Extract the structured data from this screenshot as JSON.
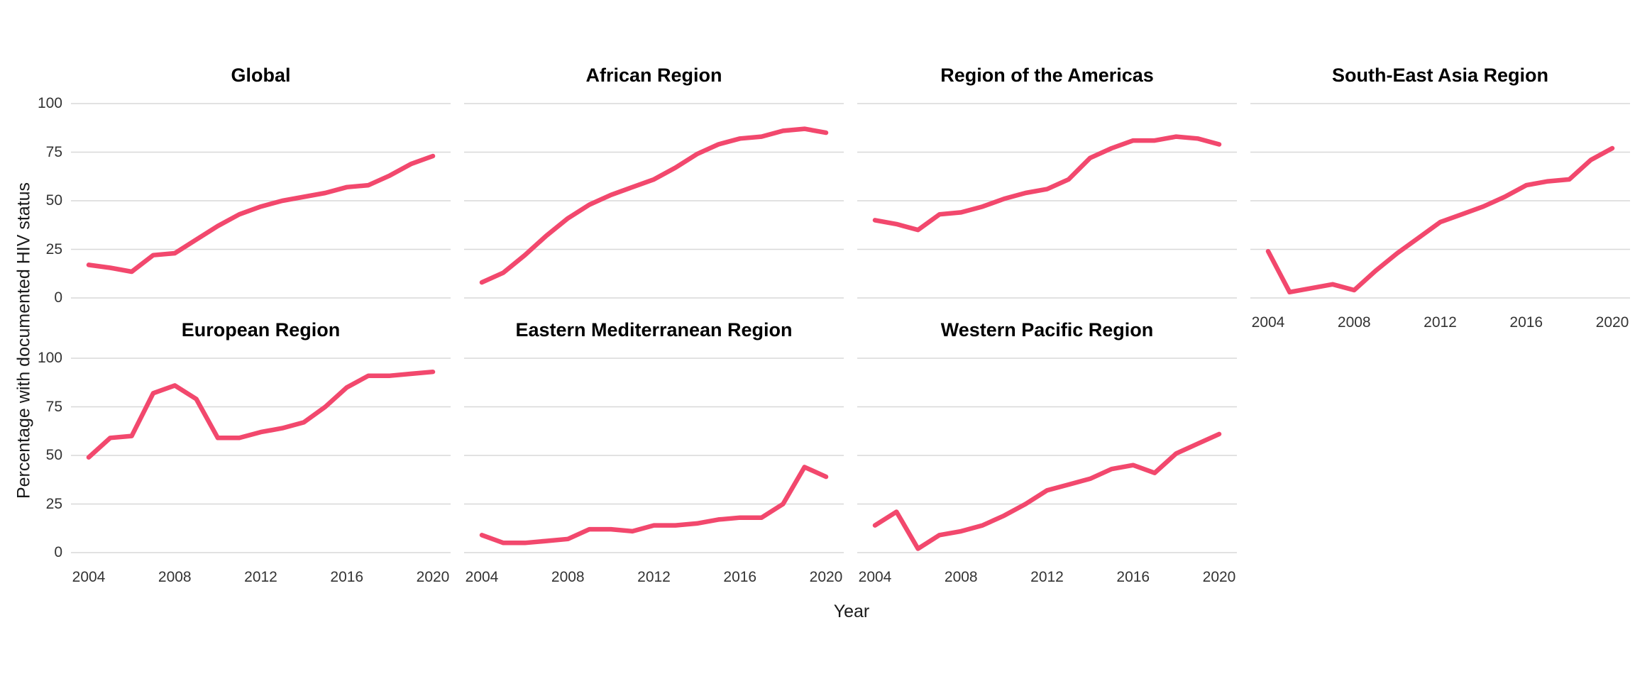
{
  "chart": {
    "style": {
      "line_color": "#F2486D",
      "grid_color": "#D8D8D8",
      "background": "#FFFFFF",
      "tick_label_color": "#333333",
      "title_color": "#000000"
    }
  },
  "chart_data": {
    "type": "line",
    "faceted": true,
    "facet_layout": "2 rows x 4 columns, 7 panels",
    "xlabel": "Year",
    "ylabel": "Percentage with documented HIV status",
    "ylim": [
      0,
      100
    ],
    "y_ticks": [
      0,
      25,
      50,
      75,
      100
    ],
    "x_tick_labels": [
      "2004",
      "2008",
      "2012",
      "2016",
      "2020"
    ],
    "x_tick_values": [
      2004,
      2008,
      2012,
      2016,
      2020
    ],
    "grid": "horizontal-major-only",
    "legend": "none",
    "x": [
      2004,
      2005,
      2006,
      2007,
      2008,
      2009,
      2010,
      2011,
      2012,
      2013,
      2014,
      2015,
      2016,
      2017,
      2018,
      2019,
      2020
    ],
    "facets": [
      {
        "title": "Global",
        "row": 0,
        "col": 0,
        "show_x_axis": false,
        "show_y_axis": true,
        "values": [
          17,
          15.5,
          13.5,
          22,
          23,
          30,
          37,
          43,
          47,
          50,
          52,
          54,
          57,
          58,
          63,
          69,
          73
        ]
      },
      {
        "title": "African Region",
        "row": 0,
        "col": 1,
        "show_x_axis": false,
        "show_y_axis": false,
        "values": [
          8,
          13,
          22,
          32,
          41,
          48,
          53,
          57,
          61,
          67,
          74,
          79,
          82,
          83,
          86,
          87,
          85
        ]
      },
      {
        "title": "Region of the Americas",
        "row": 0,
        "col": 2,
        "show_x_axis": false,
        "show_y_axis": false,
        "values": [
          40,
          38,
          35,
          43,
          44,
          47,
          51,
          54,
          56,
          61,
          72,
          77,
          81,
          81,
          83,
          82,
          79
        ]
      },
      {
        "title": "South-East Asia Region",
        "row": 0,
        "col": 3,
        "show_x_axis": true,
        "show_y_axis": false,
        "values": [
          24,
          3,
          5,
          7,
          4,
          14,
          23,
          31,
          39,
          43,
          47,
          52,
          58,
          60,
          61,
          71,
          77
        ]
      },
      {
        "title": "European Region",
        "row": 1,
        "col": 0,
        "show_x_axis": true,
        "show_y_axis": true,
        "values": [
          49,
          59,
          60,
          82,
          86,
          79,
          59,
          59,
          62,
          64,
          67,
          75,
          85,
          91,
          91,
          92,
          93
        ]
      },
      {
        "title": "Eastern Mediterranean Region",
        "row": 1,
        "col": 1,
        "show_x_axis": true,
        "show_y_axis": false,
        "values": [
          9,
          5,
          5,
          6,
          7,
          12,
          12,
          11,
          14,
          14,
          15,
          17,
          18,
          18,
          25,
          44,
          39
        ]
      },
      {
        "title": "Western Pacific Region",
        "row": 1,
        "col": 2,
        "show_x_axis": true,
        "show_y_axis": false,
        "values": [
          14,
          21,
          2,
          9,
          11,
          14,
          19,
          25,
          32,
          35,
          38,
          43,
          45,
          41,
          51,
          56,
          61
        ]
      }
    ]
  }
}
